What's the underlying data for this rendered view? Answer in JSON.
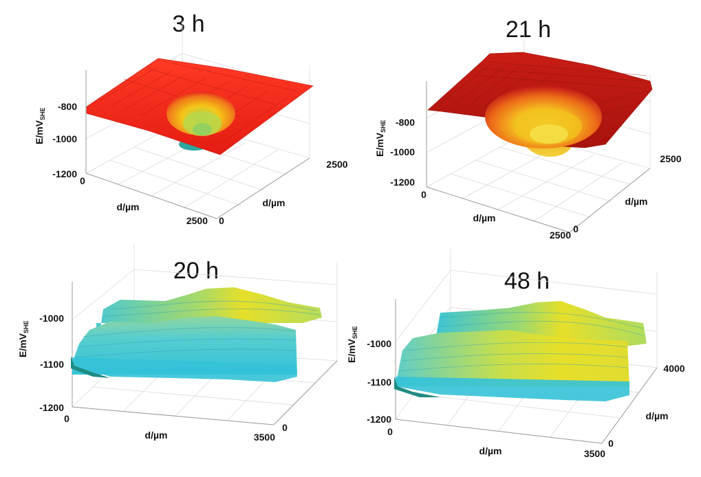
{
  "chart_data": [
    {
      "id": "p3h",
      "type": "surface3d",
      "title": "3 h",
      "zlabel": "E/mV",
      "zlabel_sub": "SHE",
      "xlabel": "d/µm",
      "ylabel": "d/µm",
      "xlim": [
        0,
        2500
      ],
      "ylim": [
        0,
        2500
      ],
      "zlim": [
        -1200,
        -750
      ],
      "x_ticks": [
        "0",
        "2500"
      ],
      "y_ticks": [
        "0",
        "2500"
      ],
      "z_ticks": [
        "-800",
        "-1000",
        "-1200"
      ],
      "plateau_E": -820,
      "pit": {
        "x": 1400,
        "y": 1500,
        "radius": 450,
        "depth_E": -1150
      },
      "colors": {
        "high": "#e8261b",
        "mid": "#f5c618",
        "low": "#2fa8a0"
      }
    },
    {
      "id": "p21h",
      "type": "surface3d",
      "title": "21 h",
      "zlabel": "E/mV",
      "zlabel_sub": "SHE",
      "xlabel": "d/µm",
      "ylabel": "d/µm",
      "xlim": [
        0,
        2500
      ],
      "ylim": [
        0,
        2500
      ],
      "zlim": [
        -1200,
        -600
      ],
      "x_ticks": [
        "0",
        "2500"
      ],
      "y_ticks": [
        "0",
        "2500"
      ],
      "z_ticks": [
        "-800",
        "-1000",
        "-1200"
      ],
      "plateau_E": -700,
      "pit": {
        "x": 1300,
        "y": 1400,
        "radius": 650,
        "depth_E": -1000
      },
      "colors": {
        "high": "#c41d16",
        "mid": "#f5d020",
        "low": "#e88a18"
      }
    },
    {
      "id": "p20h",
      "type": "surface3d",
      "title": "20 h",
      "zlabel": "E/mV",
      "zlabel_sub": "SHE",
      "xlabel": "d/µm",
      "ylabel": "",
      "xlim": [
        0,
        3500
      ],
      "ylim": [
        0,
        3500
      ],
      "zlim": [
        -1200,
        -950
      ],
      "x_ticks": [
        "0",
        "3500"
      ],
      "y_ticks": [
        "0"
      ],
      "z_ticks": [
        "-1000",
        "-1100",
        "-1200"
      ],
      "ridges": [
        {
          "y": 1000,
          "peak_x": 2000,
          "peak_E": -1020,
          "base_E": -1070
        },
        {
          "y": 2600,
          "peak_x": 2200,
          "peak_E": -985,
          "base_E": -1050
        }
      ],
      "colors": {
        "high": "#e6df2a",
        "mid": "#7fd6b0",
        "low": "#35c2d8"
      }
    },
    {
      "id": "p48h",
      "type": "surface3d",
      "title": "48 h",
      "zlabel": "E/mV",
      "zlabel_sub": "SHE",
      "xlabel": "d/µm",
      "ylabel": "d/µm",
      "xlim": [
        0,
        3500
      ],
      "ylim": [
        0,
        4000
      ],
      "zlim": [
        -1200,
        -950
      ],
      "x_ticks": [
        "0",
        "3500"
      ],
      "y_ticks": [
        "0",
        "4000"
      ],
      "z_ticks": [
        "-1000",
        "-1100",
        "-1200"
      ],
      "ridges": [
        {
          "y": 1200,
          "peak_x": 1900,
          "peak_E": -1000,
          "base_E": -1060
        },
        {
          "y": 3000,
          "peak_x": 2100,
          "peak_E": -975,
          "base_E": -1040
        }
      ],
      "colors": {
        "high": "#e6df2a",
        "mid": "#7fd6b0",
        "low": "#35c2d8"
      }
    }
  ]
}
